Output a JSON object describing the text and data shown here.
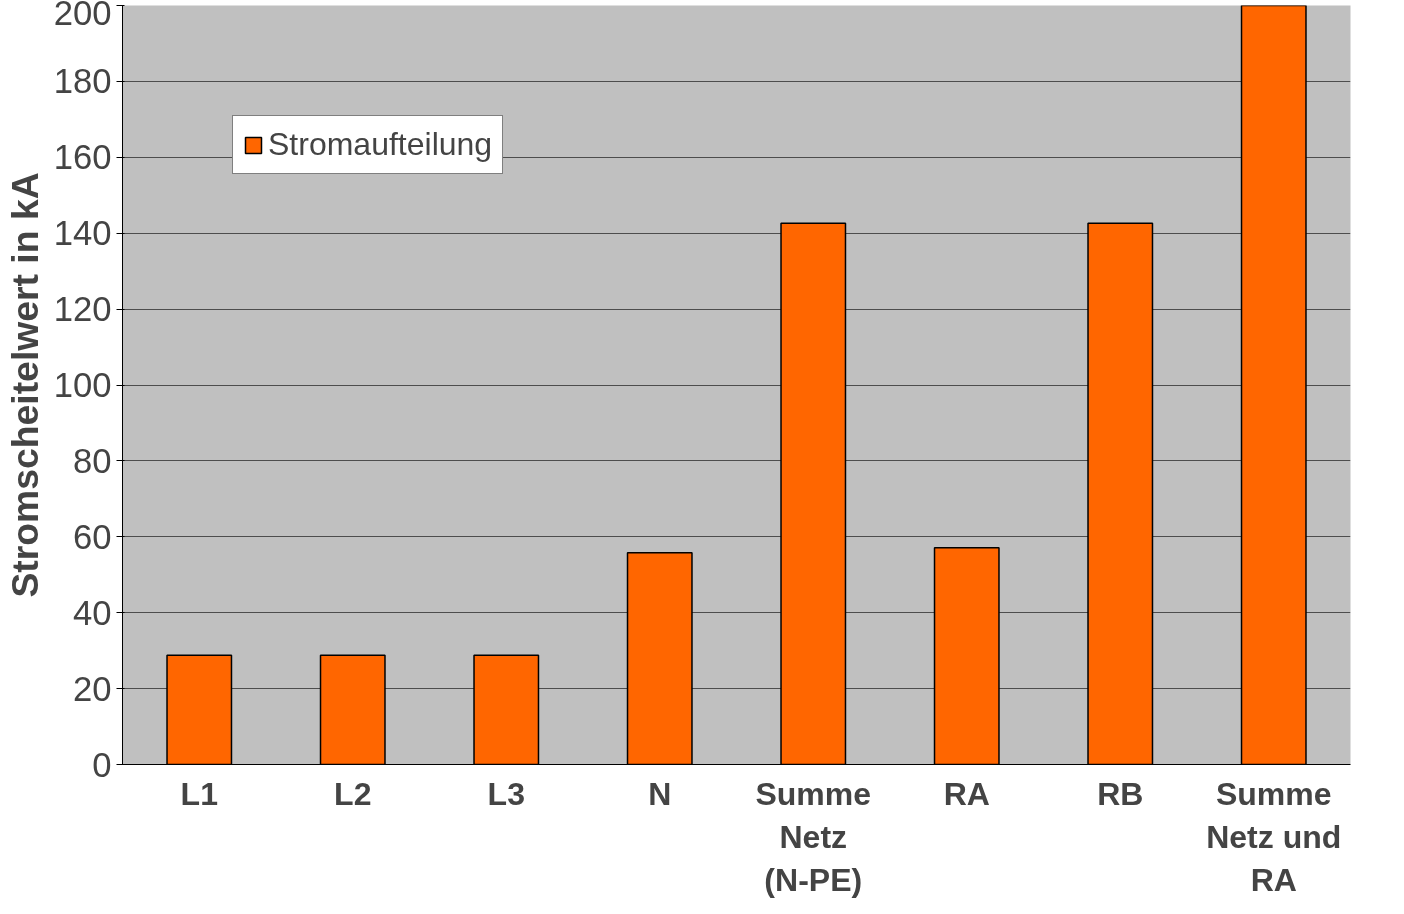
{
  "chart_data": {
    "type": "bar",
    "ylabel": "Stromscheitelwert in kA",
    "categories": [
      "L1",
      "L2",
      "L3",
      "N",
      "Summe Netz (N-PE)",
      "RA",
      "RB",
      "Summe Netz und RA"
    ],
    "series": [
      {
        "name": "Stromaufteilung",
        "color": "#ff6600",
        "values": [
          28.8,
          28.8,
          28.8,
          55.8,
          142.6,
          57.1,
          142.6,
          200
        ]
      }
    ],
    "ylim": [
      0,
      200
    ],
    "yticks": [
      0,
      20,
      40,
      60,
      80,
      100,
      120,
      140,
      160,
      180,
      200
    ],
    "grid": "y",
    "legend": "top left"
  }
}
